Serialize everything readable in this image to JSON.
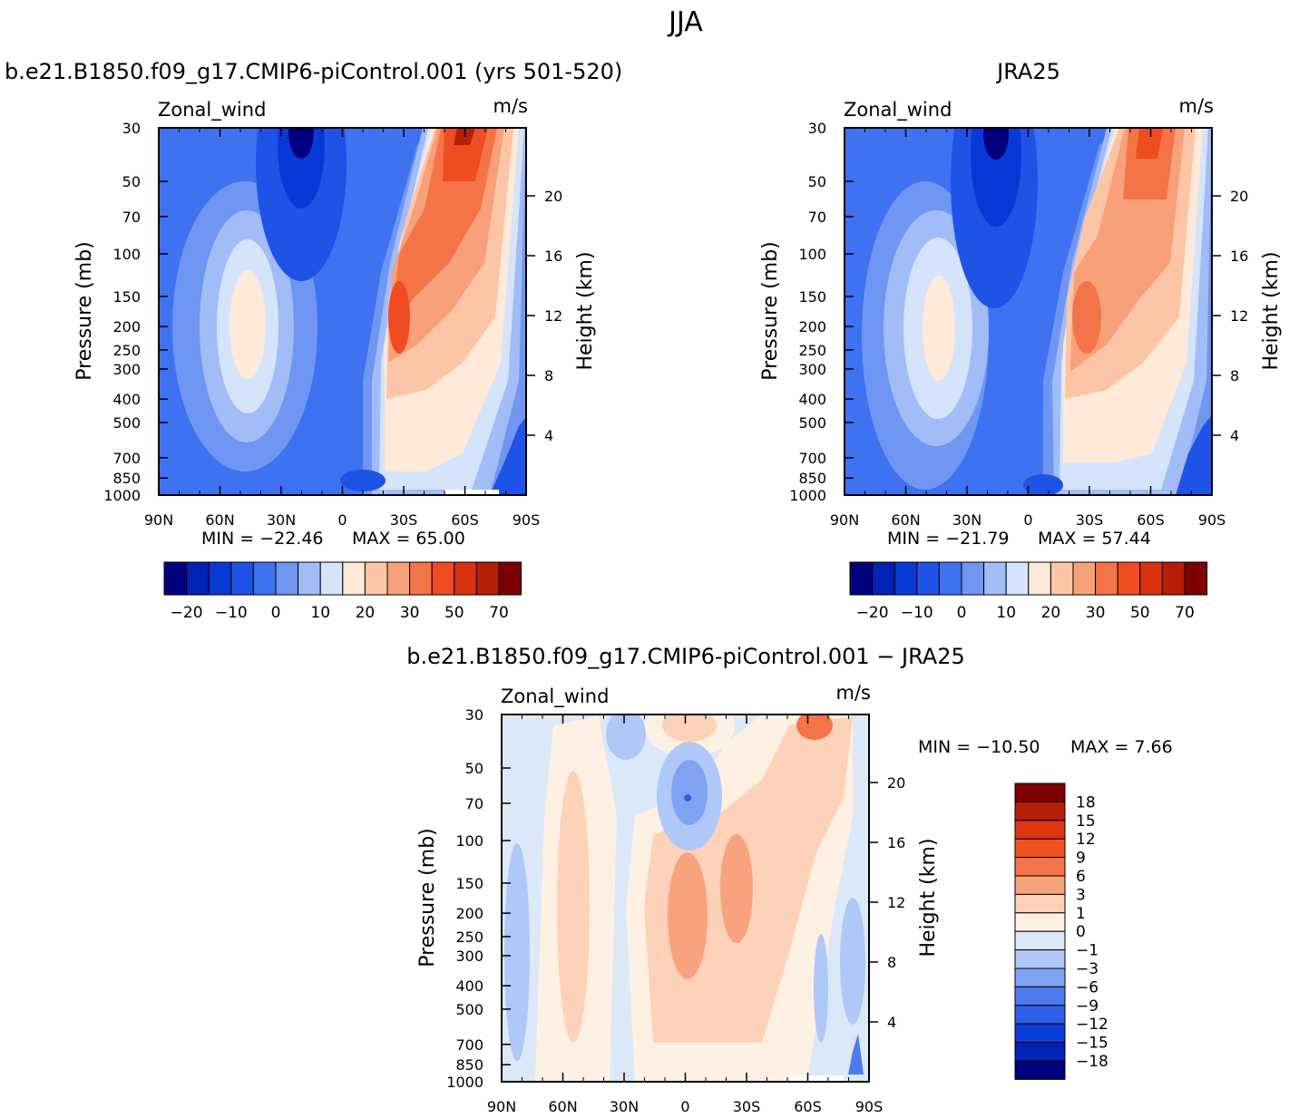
{
  "figure": {
    "season": "JJA"
  },
  "chart_data": [
    {
      "type": "heatmap",
      "id": "model",
      "title": "b.e21.B1850.f09_g17.CMIP6-piControl.001 (yrs 501-520)",
      "variable": "Zonal_wind",
      "units": "m/s",
      "ylabel": "Pressure (mb)",
      "y2label": "Height (km)",
      "x_ticks": [
        "90N",
        "60N",
        "30N",
        "0",
        "30S",
        "60S",
        "90S"
      ],
      "x_values": [
        90,
        60,
        30,
        0,
        -30,
        -60,
        -90
      ],
      "y_ticks": [
        "30",
        "50",
        "70",
        "100",
        "150",
        "200",
        "250",
        "300",
        "400",
        "500",
        "700",
        "850",
        "1000"
      ],
      "y_values": [
        30,
        50,
        70,
        100,
        150,
        200,
        250,
        300,
        400,
        500,
        700,
        850,
        1000
      ],
      "y2_ticks": [
        "4",
        "8",
        "12",
        "16",
        "20"
      ],
      "y2_values": [
        4,
        8,
        12,
        16,
        20
      ],
      "min_label": "MIN = −22.46",
      "max_label": "MAX =   65.00",
      "min": -22.46,
      "max": 65.0,
      "colorbar": {
        "orientation": "horizontal",
        "levels": [
          -25,
          -20,
          -15,
          -10,
          -5,
          0,
          5,
          10,
          15,
          20,
          25,
          30,
          40,
          50,
          60,
          70
        ],
        "labels": [
          "−20",
          "−10",
          "0",
          "10",
          "20",
          "30",
          "50",
          "70"
        ],
        "colors": [
          "#00007f",
          "#0322b6",
          "#0739d6",
          "#1f52e6",
          "#3f72f0",
          "#6f96f2",
          "#a2bcf7",
          "#d5e3fb",
          "#ffe9d8",
          "#fcc5a6",
          "#f8a07a",
          "#f47448",
          "#ef4d21",
          "#d9320f",
          "#b51f08",
          "#7f0000"
        ]
      }
    },
    {
      "type": "heatmap",
      "id": "obs",
      "title": "JRA25",
      "variable": "Zonal_wind",
      "units": "m/s",
      "ylabel": "Pressure (mb)",
      "y2label": "Height (km)",
      "x_ticks": [
        "90N",
        "60N",
        "30N",
        "0",
        "30S",
        "60S",
        "90S"
      ],
      "x_values": [
        90,
        60,
        30,
        0,
        -30,
        -60,
        -90
      ],
      "y_ticks": [
        "30",
        "50",
        "70",
        "100",
        "150",
        "200",
        "250",
        "300",
        "400",
        "500",
        "700",
        "850",
        "1000"
      ],
      "y_values": [
        30,
        50,
        70,
        100,
        150,
        200,
        250,
        300,
        400,
        500,
        700,
        850,
        1000
      ],
      "y2_ticks": [
        "4",
        "8",
        "12",
        "16",
        "20"
      ],
      "y2_values": [
        4,
        8,
        12,
        16,
        20
      ],
      "min_label": "MIN = −21.79",
      "max_label": "MAX =   57.44",
      "min": -21.79,
      "max": 57.44,
      "colorbar": {
        "orientation": "horizontal",
        "levels": [
          -25,
          -20,
          -15,
          -10,
          -5,
          0,
          5,
          10,
          15,
          20,
          25,
          30,
          40,
          50,
          60,
          70
        ],
        "labels": [
          "−20",
          "−10",
          "0",
          "10",
          "20",
          "30",
          "50",
          "70"
        ],
        "colors": [
          "#00007f",
          "#0322b6",
          "#0739d6",
          "#1f52e6",
          "#3f72f0",
          "#6f96f2",
          "#a2bcf7",
          "#d5e3fb",
          "#ffe9d8",
          "#fcc5a6",
          "#f8a07a",
          "#f47448",
          "#ef4d21",
          "#d9320f",
          "#b51f08",
          "#7f0000"
        ]
      }
    },
    {
      "type": "heatmap",
      "id": "diff",
      "title": "b.e21.B1850.f09_g17.CMIP6-piControl.001 − JRA25",
      "variable": "Zonal_wind",
      "units": "m/s",
      "ylabel": "Pressure (mb)",
      "y2label": "Height (km)",
      "x_ticks": [
        "90N",
        "60N",
        "30N",
        "0",
        "30S",
        "60S",
        "90S"
      ],
      "x_values": [
        90,
        60,
        30,
        0,
        -30,
        -60,
        -90
      ],
      "y_ticks": [
        "30",
        "50",
        "70",
        "100",
        "150",
        "200",
        "250",
        "300",
        "400",
        "500",
        "700",
        "850",
        "1000"
      ],
      "y_values": [
        30,
        50,
        70,
        100,
        150,
        200,
        250,
        300,
        400,
        500,
        700,
        850,
        1000
      ],
      "y2_ticks": [
        "4",
        "8",
        "12",
        "16",
        "20"
      ],
      "y2_values": [
        4,
        8,
        12,
        16,
        20
      ],
      "min_label": "MIN = −10.50",
      "max_label": "MAX =    7.66",
      "min": -10.5,
      "max": 7.66,
      "colorbar": {
        "orientation": "vertical",
        "levels": [
          -18,
          -15,
          -12,
          -9,
          -6,
          -3,
          -1,
          0,
          1,
          3,
          6,
          9,
          12,
          15,
          18
        ],
        "labels": [
          "18",
          "15",
          "12",
          "9",
          "6",
          "3",
          "1",
          "0",
          "−1",
          "−3",
          "−6",
          "−9",
          "−12",
          "−15",
          "−18"
        ],
        "colors": [
          "#7f0000",
          "#b51f08",
          "#df3510",
          "#f2501f",
          "#f4744a",
          "#f9a27e",
          "#fdd2b8",
          "#fff0e4",
          "#dbe8f8",
          "#b0c8f8",
          "#7fa3f2",
          "#4f7bf0",
          "#2f5ee8",
          "#0a3ed8",
          "#0422b5",
          "#00007f"
        ]
      }
    }
  ]
}
